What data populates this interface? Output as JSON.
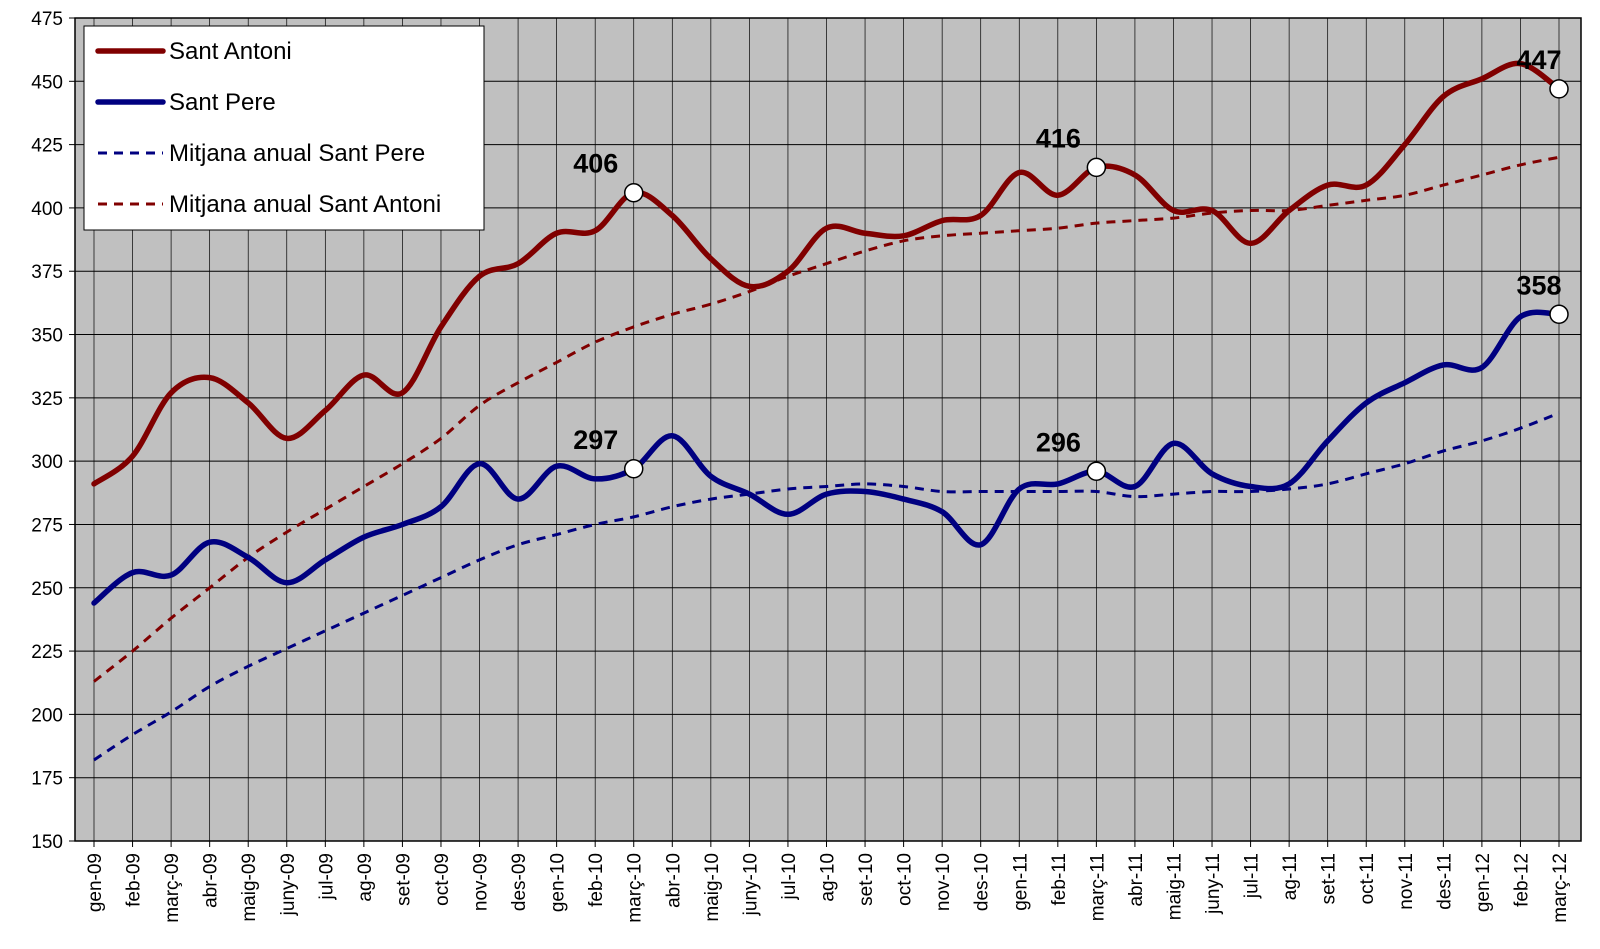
{
  "chart_data": {
    "type": "line",
    "ylim": [
      150,
      475
    ],
    "yticks": [
      150,
      175,
      200,
      225,
      250,
      275,
      300,
      325,
      350,
      375,
      400,
      425,
      450,
      475
    ],
    "categories": [
      "gen-09",
      "feb-09",
      "març-09",
      "abr-09",
      "maig-09",
      "juny-09",
      "jul-09",
      "ag-09",
      "set-09",
      "oct-09",
      "nov-09",
      "des-09",
      "gen-10",
      "feb-10",
      "març-10",
      "abr-10",
      "maig-10",
      "juny-10",
      "jul-10",
      "ag-10",
      "set-10",
      "oct-10",
      "nov-10",
      "des-10",
      "gen-11",
      "feb-11",
      "març-11",
      "abr-11",
      "maig-11",
      "juny-11",
      "jul-11",
      "ag-11",
      "set-11",
      "oct-11",
      "nov-11",
      "des-11",
      "gen-12",
      "feb-12",
      "març-12"
    ],
    "grid": true,
    "legend_position": "top-left",
    "colors": {
      "plot_bg": "#c0c0c0",
      "sant_antoni": "#800000",
      "sant_pere": "#000080",
      "marker_fill": "#ffffff"
    },
    "series": [
      {
        "name": "Sant Antoni",
        "style": "solid",
        "color": "#800000",
        "values": [
          291,
          302,
          327,
          333,
          323,
          309,
          320,
          334,
          327,
          353,
          373,
          378,
          390,
          391,
          406,
          397,
          380,
          369,
          375,
          392,
          390,
          389,
          395,
          397,
          414,
          405,
          416,
          413,
          399,
          399,
          386,
          399,
          409,
          409,
          425,
          444,
          451,
          457,
          447
        ]
      },
      {
        "name": "Sant Pere",
        "style": "solid",
        "color": "#000080",
        "values": [
          244,
          256,
          255,
          268,
          262,
          252,
          261,
          270,
          275,
          282,
          299,
          285,
          298,
          293,
          297,
          310,
          294,
          287,
          279,
          287,
          288,
          285,
          280,
          267,
          289,
          291,
          296,
          290,
          307,
          295,
          290,
          291,
          308,
          323,
          331,
          338,
          337,
          357,
          358
        ]
      },
      {
        "name": "Mitjana anual Sant Pere",
        "style": "dashed",
        "color": "#000080",
        "values": [
          182,
          192,
          201,
          211,
          219,
          226,
          233,
          240,
          247,
          254,
          261,
          267,
          271,
          275,
          278,
          282,
          285,
          287,
          289,
          290,
          291,
          290,
          288,
          288,
          288,
          288,
          288,
          286,
          287,
          288,
          288,
          289,
          291,
          295,
          299,
          304,
          308,
          313,
          319
        ]
      },
      {
        "name": "Mitjana anual Sant Antoni",
        "style": "dashed",
        "color": "#800000",
        "values": [
          213,
          225,
          238,
          250,
          262,
          272,
          281,
          290,
          299,
          309,
          322,
          331,
          339,
          347,
          353,
          358,
          362,
          367,
          373,
          378,
          383,
          387,
          389,
          390,
          391,
          392,
          394,
          395,
          396,
          398,
          399,
          399,
          401,
          403,
          405,
          409,
          413,
          417,
          420
        ]
      }
    ],
    "annotations": [
      {
        "series": 0,
        "index": 14,
        "label": "406"
      },
      {
        "series": 0,
        "index": 26,
        "label": "416"
      },
      {
        "series": 0,
        "index": 38,
        "label": "447"
      },
      {
        "series": 1,
        "index": 14,
        "label": "297"
      },
      {
        "series": 1,
        "index": 26,
        "label": "296"
      },
      {
        "series": 1,
        "index": 38,
        "label": "358"
      }
    ]
  }
}
